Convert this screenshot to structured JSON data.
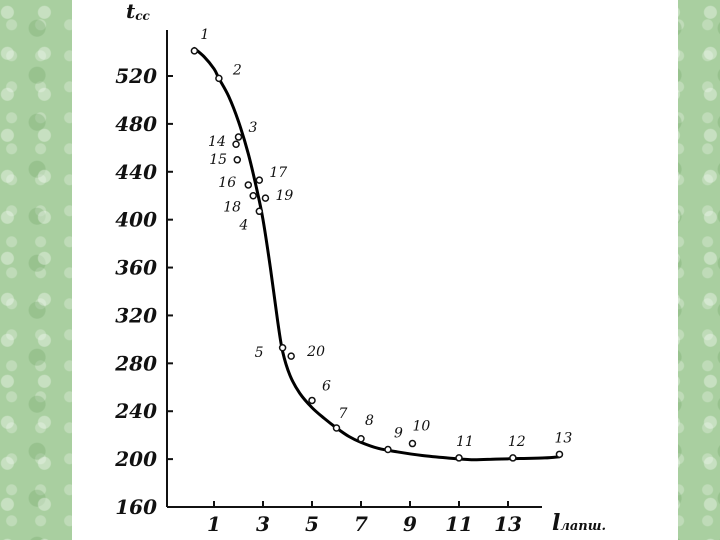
{
  "chart_data": {
    "type": "line",
    "ylabel": "t",
    "ylabel_sub": "сс",
    "xlabel": "l",
    "xlabel_sub": "лапш.",
    "ylim": [
      160,
      550
    ],
    "xlim": [
      0,
      15
    ],
    "y_ticks": [
      "520",
      "480",
      "440",
      "400",
      "360",
      "320",
      "280",
      "240",
      "200",
      "160"
    ],
    "x_ticks": [
      "1",
      "3",
      "5",
      "7",
      "9",
      "11",
      "13"
    ],
    "grid": false,
    "points": [
      {
        "label": "1",
        "x": 0.2,
        "y": 541
      },
      {
        "label": "2",
        "x": 1.2,
        "y": 518
      },
      {
        "label": "3",
        "x": 2.0,
        "y": 469
      },
      {
        "label": "14",
        "x": 1.9,
        "y": 463
      },
      {
        "label": "15",
        "x": 1.95,
        "y": 450
      },
      {
        "label": "16",
        "x": 2.4,
        "y": 429
      },
      {
        "label": "17",
        "x": 2.85,
        "y": 433
      },
      {
        "label": "18",
        "x": 2.6,
        "y": 420
      },
      {
        "label": "19",
        "x": 3.1,
        "y": 418
      },
      {
        "label": "4",
        "x": 2.85,
        "y": 407
      },
      {
        "label": "5",
        "x": 3.8,
        "y": 293
      },
      {
        "label": "20",
        "x": 4.15,
        "y": 286
      },
      {
        "label": "6",
        "x": 5.0,
        "y": 249
      },
      {
        "label": "7",
        "x": 6.0,
        "y": 226
      },
      {
        "label": "8",
        "x": 7.0,
        "y": 217
      },
      {
        "label": "9",
        "x": 8.1,
        "y": 208
      },
      {
        "label": "10",
        "x": 9.1,
        "y": 213
      },
      {
        "label": "11",
        "x": 11.0,
        "y": 201
      },
      {
        "label": "12",
        "x": 13.2,
        "y": 201
      },
      {
        "label": "13",
        "x": 15.1,
        "y": 204
      }
    ],
    "curve": [
      [
        0.2,
        543
      ],
      [
        0.6,
        536
      ],
      [
        1.0,
        526
      ],
      [
        1.2,
        518
      ],
      [
        1.6,
        503
      ],
      [
        2.0,
        482
      ],
      [
        2.4,
        455
      ],
      [
        2.75,
        425
      ],
      [
        3.0,
        400
      ],
      [
        3.3,
        360
      ],
      [
        3.6,
        315
      ],
      [
        3.8,
        290
      ],
      [
        4.1,
        270
      ],
      [
        4.5,
        255
      ],
      [
        5.0,
        243
      ],
      [
        5.5,
        234
      ],
      [
        6.0,
        226
      ],
      [
        6.5,
        219
      ],
      [
        7.0,
        214
      ],
      [
        7.7,
        209
      ],
      [
        8.5,
        206
      ],
      [
        9.5,
        203
      ],
      [
        10.5,
        201
      ],
      [
        11.5,
        199.5
      ],
      [
        12.5,
        200
      ],
      [
        13.5,
        200.5
      ],
      [
        14.5,
        201
      ],
      [
        15.1,
        202
      ]
    ]
  }
}
